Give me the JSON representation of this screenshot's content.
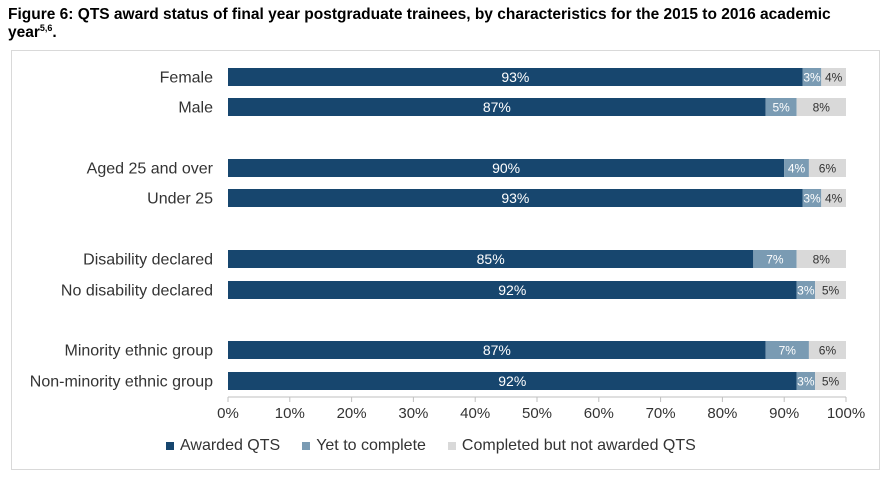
{
  "title": "Figure 6: QTS award status of final year postgraduate trainees, by characteristics for the 2015 to 2016 academic year",
  "title_superscript": "5,6",
  "title_end": ".",
  "colors": {
    "awarded": "#17466e",
    "yet": "#7a9bb3",
    "completed_not_awarded": "#d9d9d9"
  },
  "chart_data": {
    "type": "bar",
    "orientation": "horizontal",
    "stacked": true,
    "categories": [
      "Female",
      "Male",
      "Aged 25 and over",
      "Under 25",
      "Disability declared",
      "No disability declared",
      "Minority ethnic group",
      "Non-minority ethnic group"
    ],
    "groups": [
      [
        0,
        1
      ],
      [
        2,
        3
      ],
      [
        4,
        5
      ],
      [
        6,
        7
      ]
    ],
    "series": [
      {
        "name": "Awarded QTS",
        "values": [
          93,
          87,
          90,
          93,
          85,
          92,
          87,
          92
        ],
        "labels": [
          "93%",
          "87%",
          "90%",
          "93%",
          "85%",
          "92%",
          "87%",
          "92%"
        ]
      },
      {
        "name": "Yet to complete",
        "values": [
          3,
          5,
          4,
          3,
          7,
          3,
          7,
          3
        ],
        "labels": [
          "3%",
          "5%",
          "4%",
          "3%",
          "7%",
          "3%",
          "7%",
          "3%"
        ]
      },
      {
        "name": "Completed but not awarded QTS",
        "values": [
          4,
          8,
          6,
          4,
          8,
          5,
          6,
          5
        ],
        "labels": [
          "4%",
          "8%",
          "6%",
          "4%",
          "8%",
          "5%",
          "6%",
          "5%"
        ]
      }
    ],
    "xlim": [
      0,
      100
    ],
    "xticks": [
      "0%",
      "10%",
      "20%",
      "30%",
      "40%",
      "50%",
      "60%",
      "70%",
      "80%",
      "90%",
      "100%"
    ],
    "grid": false,
    "legend_position": "bottom"
  }
}
